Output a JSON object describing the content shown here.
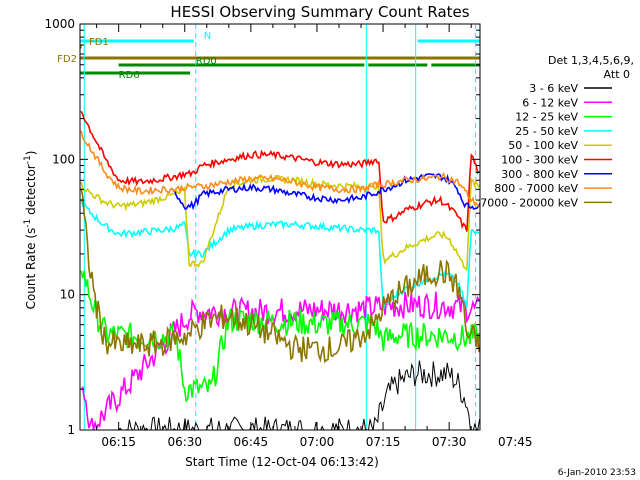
{
  "chart_data": {
    "type": "line",
    "title": "HESSI Observing Summary Count Rates",
    "xlabel": "Start Time (12-Oct-04 06:13:42)",
    "ylabel_main": "Count Rate (s",
    "ylabel_sup1": "-1",
    "ylabel_mid": " detector",
    "ylabel_sup2": "-1",
    "ylabel_end": ")",
    "yscale": "log",
    "ylim": [
      1,
      1000
    ],
    "xlim_minutes": [
      6.23,
      97.0
    ],
    "x_unit": "minutes after 06:00",
    "x_ticks": [
      {
        "label": "06:15",
        "value": 15
      },
      {
        "label": "06:30",
        "value": 30
      },
      {
        "label": "06:45",
        "value": 45
      },
      {
        "label": "07:00",
        "value": 60
      },
      {
        "label": "07:15",
        "value": 75
      },
      {
        "label": "07:30",
        "value": 90
      },
      {
        "label": "07:45",
        "value": 105
      }
    ],
    "y_ticks": [
      {
        "label": "1",
        "value": 1
      },
      {
        "label": "10",
        "value": 10
      },
      {
        "label": "100",
        "value": 100
      },
      {
        "label": "1000",
        "value": 1000
      }
    ],
    "legend_header": [
      "Det 1,3,4,5,6,9,",
      "Att 0"
    ],
    "legend_placement": "right",
    "series": [
      {
        "name": "3 - 6 keV",
        "color": "#000000",
        "x": [
          15,
          73,
          76,
          78,
          82,
          86,
          90,
          92,
          94,
          95,
          96,
          97
        ],
        "y": [
          1,
          1,
          1.8,
          2.2,
          2.6,
          2.6,
          2.6,
          2.2,
          1.6,
          1,
          1,
          1
        ]
      },
      {
        "name": "6 - 12 keV",
        "color": "#ff00ff",
        "x": [
          6.5,
          8,
          8.5,
          30.5,
          33,
          40,
          50,
          60,
          70,
          72,
          75,
          80,
          85,
          90,
          94,
          96,
          97
        ],
        "y": [
          2.4,
          1.5,
          1,
          6.8,
          7.6,
          7.4,
          7.6,
          7.7,
          7.8,
          7.9,
          8.2,
          8.4,
          8.4,
          8.3,
          8,
          7.7,
          7.6
        ]
      },
      {
        "name": "12 - 25 keV",
        "color": "#00ff00",
        "x": [
          6.5,
          8,
          10,
          12,
          15,
          20,
          25,
          28,
          30,
          31,
          32,
          34,
          36,
          40,
          45,
          50,
          55,
          60,
          65,
          70,
          73,
          75,
          78,
          80,
          85,
          90,
          93,
          96,
          97
        ],
        "y": [
          17,
          11,
          7,
          5.2,
          5,
          4.9,
          4.9,
          4.9,
          2,
          2,
          2,
          2,
          2,
          6.5,
          6.5,
          6.3,
          6.3,
          6.1,
          6.1,
          6.1,
          6.1,
          4.6,
          5,
          5,
          5,
          5,
          4.8,
          4.8,
          4.7
        ]
      },
      {
        "name": "25 - 50 keV",
        "color": "#00ffff",
        "x": [
          6.5,
          8,
          12,
          15,
          20,
          25,
          28,
          30,
          31,
          32,
          34,
          40,
          45,
          50,
          55,
          60,
          65,
          70,
          74,
          75,
          78,
          80,
          85,
          88,
          90,
          92,
          93,
          94,
          95,
          96,
          97
        ],
        "y": [
          50,
          42,
          32,
          28,
          29,
          30,
          31,
          33,
          20,
          20,
          20,
          30,
          32,
          33,
          33,
          32,
          31,
          30,
          30,
          8,
          10,
          11,
          13,
          14,
          14,
          12,
          10,
          8,
          30,
          30,
          30
        ]
      },
      {
        "name": "50 - 100 keV",
        "color": "#cccc00",
        "x": [
          6.5,
          8,
          12,
          15,
          20,
          25,
          28,
          30,
          31,
          32,
          34,
          40,
          45,
          50,
          55,
          60,
          65,
          70,
          74,
          75,
          78,
          80,
          85,
          88,
          90,
          92,
          93,
          94,
          95,
          96,
          97
        ],
        "y": [
          65,
          58,
          48,
          45,
          47,
          52,
          55,
          58,
          17,
          17,
          17,
          64,
          70,
          72,
          70,
          66,
          64,
          63,
          64,
          18,
          20,
          22,
          26,
          28,
          26,
          20,
          17,
          16,
          70,
          65,
          62
        ]
      },
      {
        "name": "100 - 300 keV",
        "color": "#ff0000",
        "x": [
          6.5,
          8,
          12,
          15,
          20,
          25,
          28,
          30,
          31,
          32,
          34,
          40,
          45,
          50,
          55,
          60,
          65,
          70,
          74,
          75,
          78,
          80,
          85,
          88,
          90,
          92,
          93,
          94,
          95,
          96,
          97
        ],
        "y": [
          230,
          180,
          100,
          70,
          68,
          72,
          75,
          78,
          78,
          80,
          90,
          100,
          108,
          108,
          102,
          95,
          92,
          92,
          100,
          35,
          38,
          42,
          48,
          50,
          44,
          38,
          33,
          30,
          110,
          90,
          75
        ]
      },
      {
        "name": "300 - 800 keV",
        "color": "#0000ff",
        "x": [
          27,
          28,
          30,
          31,
          32,
          34,
          40,
          45,
          50,
          55,
          60,
          65,
          70,
          74,
          75,
          78,
          80,
          85,
          88,
          90,
          92,
          93,
          94,
          95,
          96,
          97
        ],
        "y": [
          58,
          56,
          45,
          45,
          46,
          55,
          60,
          62,
          60,
          55,
          52,
          50,
          52,
          58,
          60,
          65,
          70,
          75,
          75,
          70,
          60,
          50,
          45,
          45,
          45,
          45
        ]
      },
      {
        "name": "800 - 7000 keV",
        "color": "#ff8c1a",
        "x": [
          6.5,
          8,
          12,
          15,
          20,
          25,
          28,
          30,
          31,
          32,
          34,
          40,
          45,
          50,
          55,
          60,
          65,
          70,
          74,
          75,
          78,
          80,
          85,
          88,
          90,
          92,
          93,
          94,
          95,
          96,
          97
        ],
        "y": [
          160,
          130,
          80,
          62,
          58,
          60,
          60,
          62,
          62,
          63,
          63,
          68,
          72,
          72,
          68,
          62,
          60,
          60,
          65,
          65,
          68,
          70,
          72,
          75,
          72,
          68,
          62,
          56,
          50,
          48,
          45
        ]
      },
      {
        "name": "7000 - 20000 keV",
        "color": "#8b7500",
        "x": [
          6.5,
          8,
          10,
          12,
          15,
          20,
          25,
          28,
          30,
          31,
          32,
          34,
          36,
          40,
          45,
          50,
          55,
          60,
          65,
          70,
          73,
          75,
          78,
          80,
          85,
          88,
          90,
          92,
          93,
          94,
          95,
          96,
          97
        ],
        "y": [
          60,
          20,
          8,
          4.5,
          4.2,
          4.2,
          4.4,
          4.8,
          5,
          5,
          5.5,
          6,
          6.5,
          7,
          6,
          5,
          4,
          4,
          4,
          5,
          6,
          8,
          10,
          11,
          14,
          15,
          14,
          11,
          9,
          5,
          5,
          4.5,
          4.5
        ]
      }
    ],
    "flags": [
      {
        "name": "N",
        "color": "#00ffff",
        "segments": [
          [
            6.23,
            32.5
          ],
          [
            82.4,
            97.0
          ]
        ]
      },
      {
        "name": "FD1",
        "color": "#8b7500",
        "segments": [
          [
            6.23,
            6.6
          ]
        ]
      },
      {
        "name": "FD2",
        "color": "#8b7500",
        "segments": [
          [
            6.23,
            97.0
          ]
        ]
      },
      {
        "name": "RD0",
        "color": "#008800",
        "segments": [
          [
            15.0,
            71.2
          ],
          [
            71.2,
            85.5
          ],
          [
            85.5,
            97.0
          ]
        ]
      },
      {
        "name": "RD6",
        "color": "#008800",
        "segments": [
          [
            6.23,
            31.2
          ]
        ]
      }
    ],
    "vlines_solid_cyan": [
      7.2,
      71.2,
      82.4
    ],
    "vlines_dashed_cyan": [
      32.5,
      96.0
    ]
  },
  "footer_timestamp": "6-Jan-2010 23:53"
}
